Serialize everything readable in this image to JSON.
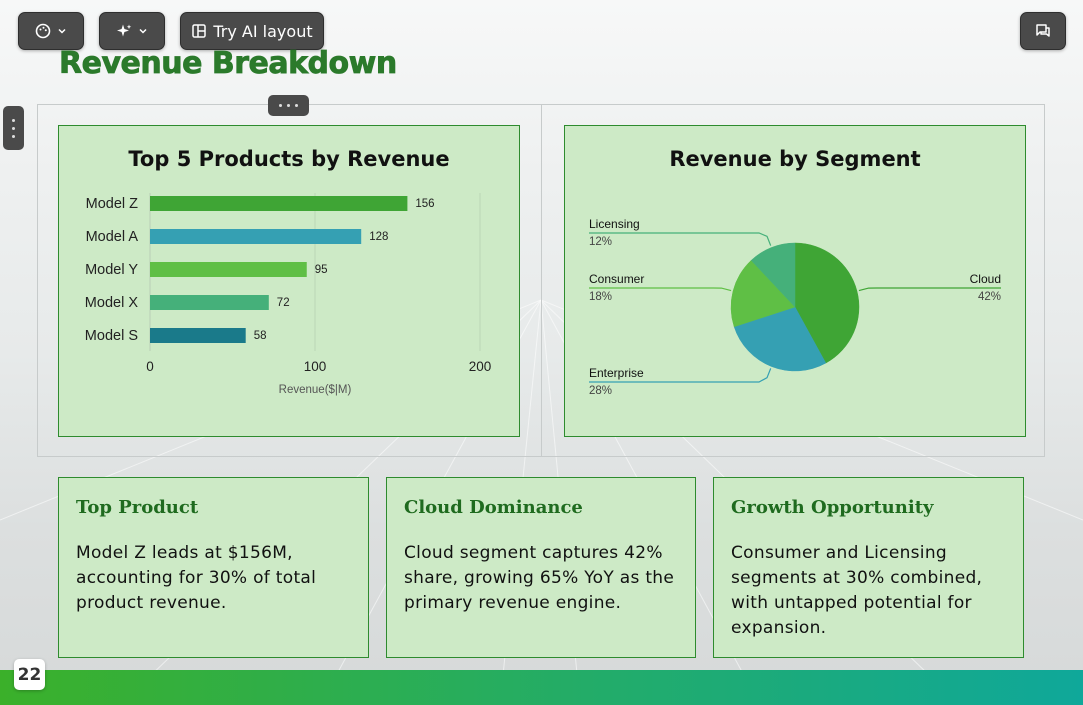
{
  "toolbar": {
    "theme_icon": "palette-icon",
    "ai_icon": "sparkles-icon",
    "ai_layout_label": "Try AI layout",
    "ai_layout_icon": "layout-icon",
    "comment_icon": "comment-icon"
  },
  "slide": {
    "title": "Revenue Breakdown",
    "page_number": "22"
  },
  "charts": {
    "bar_title": "Top 5 Products by Revenue",
    "pie_title": "Revenue by Segment"
  },
  "chart_data": [
    {
      "type": "bar",
      "title": "Top 5 Products by Revenue",
      "orientation": "horizontal",
      "categories": [
        "Model Z",
        "Model A",
        "Model Y",
        "Model X",
        "Model S"
      ],
      "values": [
        156,
        128,
        95,
        72,
        58
      ],
      "colors": [
        "#3fa535",
        "#35a0b3",
        "#5fbf45",
        "#45b07a",
        "#1a7a8a"
      ],
      "xlabel": "Revenue($|M)",
      "ylabel": "",
      "xlim": [
        0,
        200
      ],
      "xticks": [
        0,
        100,
        200
      ],
      "grid": true
    },
    {
      "type": "pie",
      "title": "Revenue by Segment",
      "labels": [
        "Cloud",
        "Enterprise",
        "Consumer",
        "Licensing"
      ],
      "values": [
        42,
        28,
        18,
        12
      ],
      "value_labels": [
        "42%",
        "28%",
        "18%",
        "12%"
      ],
      "colors": [
        "#3fa535",
        "#35a0b3",
        "#5fbf45",
        "#45b07a"
      ]
    }
  ],
  "insights": [
    {
      "title": "Top Product",
      "body": "Model Z leads at $156M, accounting for 30% of total product revenue."
    },
    {
      "title": "Cloud Dominance",
      "body": "Cloud segment captures 42% share, growing 65% YoY as the primary revenue engine."
    },
    {
      "title": "Growth Opportunity",
      "body": "Consumer and Licensing segments at 30% combined, with untapped potential for expansion."
    }
  ]
}
